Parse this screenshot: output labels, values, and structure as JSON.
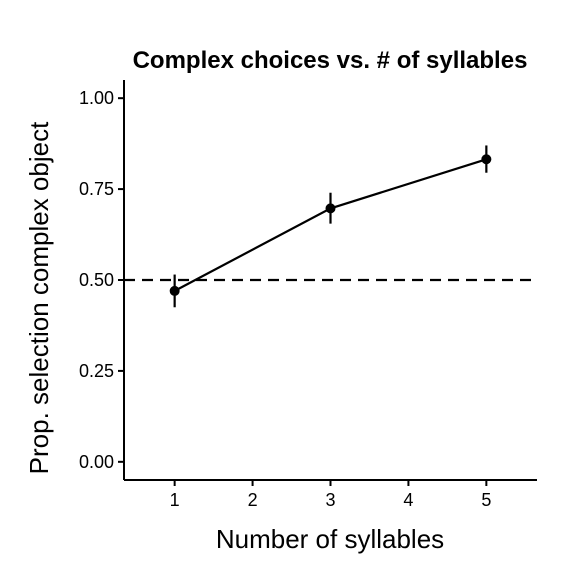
{
  "chart_data": {
    "type": "line",
    "title": "Complex choices vs. # of syllables",
    "xlabel": "Number of syllables",
    "ylabel": "Prop. selection complex object",
    "xlim": [
      0.35,
      5.65
    ],
    "ylim": [
      -0.05,
      1.05
    ],
    "x_ticks": [
      1,
      2,
      3,
      4,
      5
    ],
    "y_ticks": [
      0.0,
      0.25,
      0.5,
      0.75,
      1.0
    ],
    "x_tick_labels": [
      "1",
      "2",
      "3",
      "4",
      "5"
    ],
    "y_tick_labels": [
      "0.00",
      "0.25",
      "0.50",
      "0.75",
      "1.00"
    ],
    "grid": false,
    "reference_line": {
      "y": 0.5,
      "style": "dashed"
    },
    "series": [
      {
        "x": [
          1,
          3,
          5
        ],
        "y": [
          0.47,
          0.697,
          0.832
        ],
        "err_low": [
          0.425,
          0.655,
          0.795
        ],
        "err_high": [
          0.515,
          0.74,
          0.87
        ]
      }
    ]
  }
}
